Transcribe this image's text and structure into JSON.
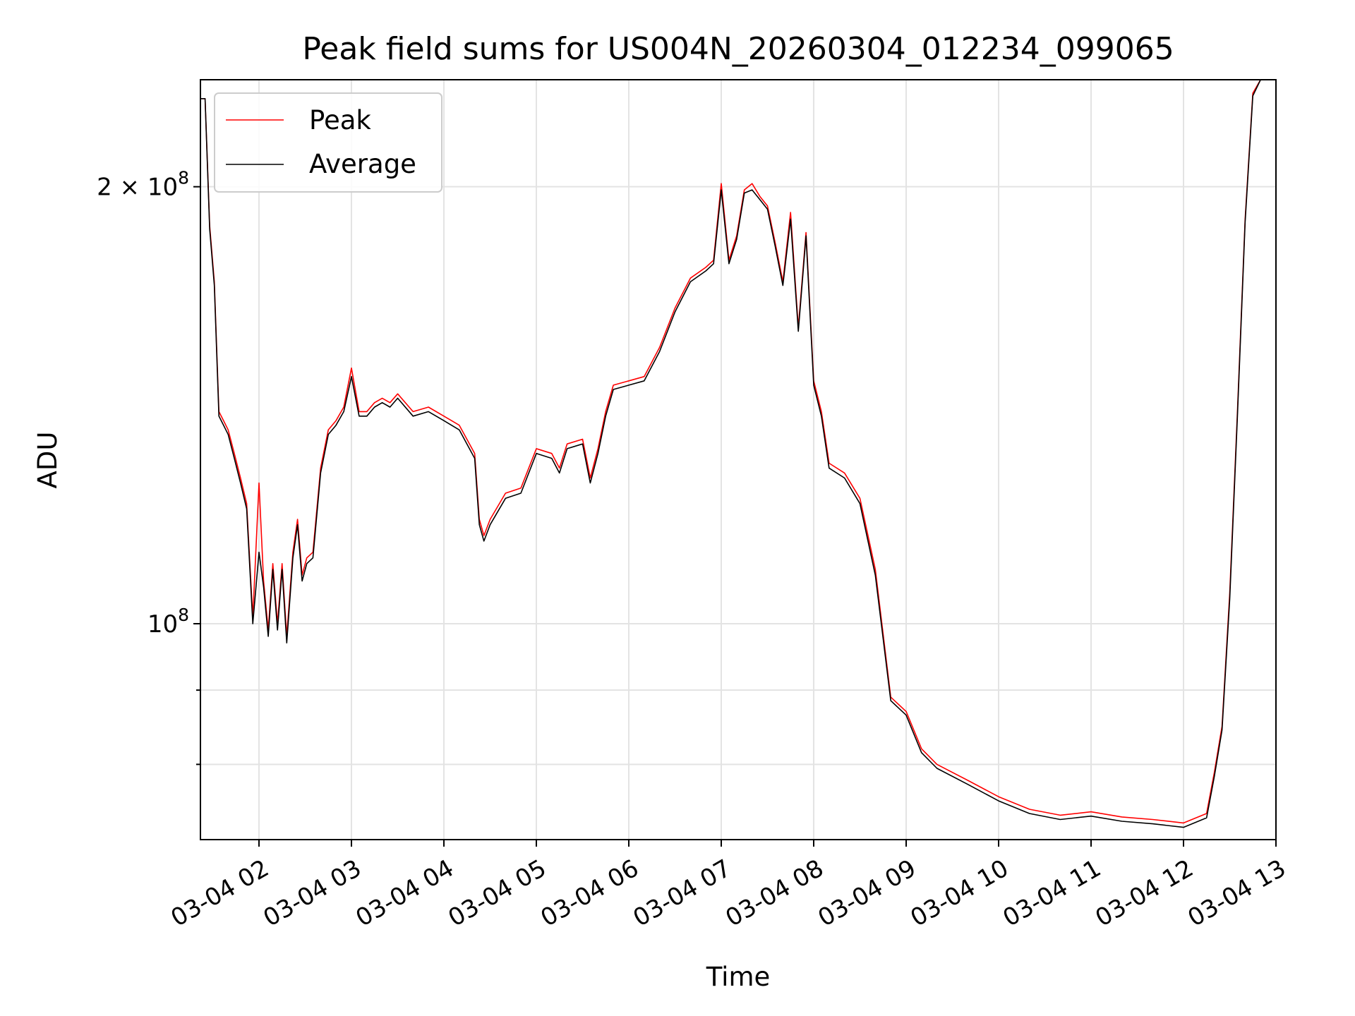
{
  "chart_data": {
    "type": "line",
    "title": "Peak field sums for US004N_20260304_012234_099065",
    "xlabel": "Time",
    "ylabel": "ADU",
    "x_unit": "datetime",
    "xlim": [
      "03-04 01:22",
      "03-04 13:00"
    ],
    "ylim": [
      71000000,
      237000000
    ],
    "y_scale": "log",
    "grid": true,
    "legend_position": "upper left",
    "x_ticks": [
      "03-04 02",
      "03-04 03",
      "03-04 04",
      "03-04 05",
      "03-04 06",
      "03-04 07",
      "03-04 08",
      "03-04 09",
      "03-04 10",
      "03-04 11",
      "03-04 12",
      "03-04 13"
    ],
    "y_ticks": [
      {
        "value": 100000000,
        "label": "10",
        "exp": "8"
      },
      {
        "value": 200000000,
        "label": "2 × 10",
        "exp": "8"
      }
    ],
    "x": [
      "03-04 01:22",
      "03-04 01:25",
      "03-04 01:28",
      "03-04 01:31",
      "03-04 01:34",
      "03-04 01:37",
      "03-04 01:40",
      "03-04 01:44",
      "03-04 01:48",
      "03-04 01:52",
      "03-04 01:56",
      "03-04 02:00",
      "03-04 02:03",
      "03-04 02:06",
      "03-04 02:09",
      "03-04 02:12",
      "03-04 02:15",
      "03-04 02:18",
      "03-04 02:22",
      "03-04 02:25",
      "03-04 02:28",
      "03-04 02:31",
      "03-04 02:35",
      "03-04 02:40",
      "03-04 02:45",
      "03-04 02:50",
      "03-04 02:55",
      "03-04 03:00",
      "03-04 03:05",
      "03-04 03:10",
      "03-04 03:15",
      "03-04 03:20",
      "03-04 03:25",
      "03-04 03:30",
      "03-04 03:40",
      "03-04 03:50",
      "03-04 04:00",
      "03-04 04:10",
      "03-04 04:20",
      "03-04 04:23",
      "03-04 04:26",
      "03-04 04:30",
      "03-04 04:40",
      "03-04 04:50",
      "03-04 05:00",
      "03-04 05:10",
      "03-04 05:15",
      "03-04 05:20",
      "03-04 05:30",
      "03-04 05:35",
      "03-04 05:40",
      "03-04 05:45",
      "03-04 05:50",
      "03-04 06:00",
      "03-04 06:10",
      "03-04 06:20",
      "03-04 06:30",
      "03-04 06:40",
      "03-04 06:50",
      "03-04 06:55",
      "03-04 07:00",
      "03-04 07:05",
      "03-04 07:10",
      "03-04 07:15",
      "03-04 07:20",
      "03-04 07:25",
      "03-04 07:30",
      "03-04 07:35",
      "03-04 07:40",
      "03-04 07:45",
      "03-04 07:50",
      "03-04 07:55",
      "03-04 08:00",
      "03-04 08:05",
      "03-04 08:10",
      "03-04 08:20",
      "03-04 08:30",
      "03-04 08:40",
      "03-04 08:50",
      "03-04 09:00",
      "03-04 09:10",
      "03-04 09:20",
      "03-04 09:40",
      "03-04 10:00",
      "03-04 10:20",
      "03-04 10:40",
      "03-04 11:00",
      "03-04 11:20",
      "03-04 11:40",
      "03-04 12:00",
      "03-04 12:15",
      "03-04 12:20",
      "03-04 12:25",
      "03-04 12:30",
      "03-04 12:35",
      "03-04 12:40",
      "03-04 12:45",
      "03-04 12:50",
      "03-04 12:53"
    ],
    "series": [
      {
        "name": "Peak",
        "color": "#ff0000",
        "values": [
          230000000,
          230000000,
          188000000,
          172000000,
          140000000,
          138000000,
          136000000,
          131000000,
          126000000,
          121000000,
          101000000,
          125000000,
          107000000,
          99000000,
          110000000,
          100000000,
          110000000,
          98000000,
          112000000,
          118000000,
          108000000,
          111000000,
          112000000,
          128000000,
          136000000,
          138000000,
          141000000,
          150000000,
          140000000,
          140000000,
          142000000,
          143000000,
          142000000,
          144000000,
          140000000,
          141000000,
          139000000,
          137000000,
          131000000,
          118000000,
          115000000,
          118000000,
          123000000,
          124000000,
          132000000,
          131000000,
          128000000,
          133000000,
          134000000,
          126000000,
          132000000,
          140000000,
          146000000,
          147000000,
          148000000,
          155000000,
          165000000,
          173000000,
          176000000,
          178000000,
          201000000,
          178000000,
          185000000,
          199000000,
          201000000,
          197000000,
          194000000,
          183000000,
          172000000,
          192000000,
          160000000,
          186000000,
          147000000,
          140000000,
          129000000,
          127000000,
          122000000,
          109000000,
          89000000,
          87000000,
          82000000,
          80000000,
          78000000,
          76000000,
          74500000,
          73800000,
          74200000,
          73600000,
          73300000,
          72900000,
          74000000,
          79000000,
          85000000,
          105000000,
          140000000,
          190000000,
          232000000,
          237000000,
          237000000
        ]
      },
      {
        "name": "Average",
        "color": "#000000",
        "values": [
          230000000,
          230000000,
          187000000,
          171000000,
          139000000,
          137000000,
          135000000,
          130000000,
          125000000,
          120000000,
          100000000,
          112000000,
          106000000,
          98000000,
          109000000,
          99000000,
          109000000,
          97000000,
          111000000,
          117000000,
          107000000,
          110000000,
          111000000,
          127000000,
          135000000,
          137000000,
          140000000,
          148000000,
          139000000,
          139000000,
          141000000,
          142000000,
          141000000,
          143000000,
          139000000,
          140000000,
          138000000,
          136000000,
          130000000,
          117000000,
          114000000,
          117000000,
          122000000,
          123000000,
          131000000,
          130000000,
          127000000,
          132000000,
          133000000,
          125000000,
          131000000,
          139000000,
          145000000,
          146000000,
          147000000,
          154000000,
          164000000,
          172000000,
          175000000,
          177000000,
          199000000,
          177000000,
          184000000,
          198000000,
          199000000,
          196000000,
          193000000,
          182000000,
          171000000,
          190000000,
          159000000,
          185000000,
          146000000,
          139000000,
          128000000,
          126000000,
          121000000,
          108000000,
          88500000,
          86500000,
          81500000,
          79500000,
          77500000,
          75500000,
          74000000,
          73300000,
          73700000,
          73100000,
          72800000,
          72400000,
          73500000,
          78500000,
          84500000,
          104000000,
          139000000,
          189000000,
          231000000,
          237000000,
          237000000
        ]
      }
    ]
  }
}
